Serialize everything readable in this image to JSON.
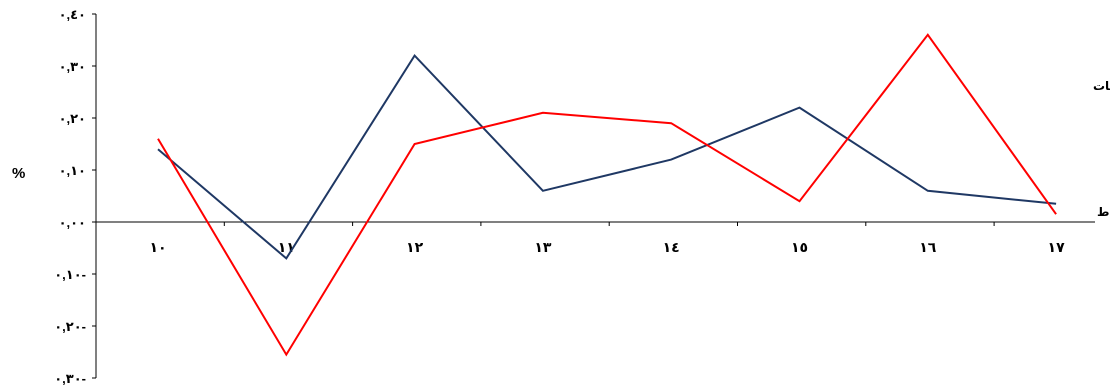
{
  "chart_data": {
    "type": "line",
    "categories": [
      "١٠",
      "١١",
      "١٢",
      "١٣",
      "١٤",
      "١٥",
      "١٦",
      "١٧"
    ],
    "y_ticks": [
      {
        "value": 0.4,
        "label": "٠,٤٠"
      },
      {
        "value": 0.3,
        "label": "٠,٣٠"
      },
      {
        "value": 0.2,
        "label": "٠,٢٠"
      },
      {
        "value": 0.1,
        "label": "٠,١٠"
      },
      {
        "value": 0.0,
        "label": "٠,٠٠"
      },
      {
        "value": -0.1,
        "label": "٠,١٠-"
      },
      {
        "value": -0.2,
        "label": "٠,٢٠-"
      },
      {
        "value": -0.3,
        "label": "٠,٣٠-"
      }
    ],
    "ylabel": "%",
    "ylim": [
      -0.3,
      0.4
    ],
    "grid": false,
    "series": [
      {
        "name": "التعويضات",
        "color": "#1f3864",
        "values": [
          0.14,
          -0.07,
          0.32,
          0.06,
          0.12,
          0.22,
          0.06,
          0.035
        ]
      },
      {
        "name": "الأقساط",
        "color": "#ff0000",
        "values": [
          0.16,
          -0.255,
          0.15,
          0.21,
          0.19,
          0.04,
          0.36,
          0.015
        ]
      }
    ]
  }
}
